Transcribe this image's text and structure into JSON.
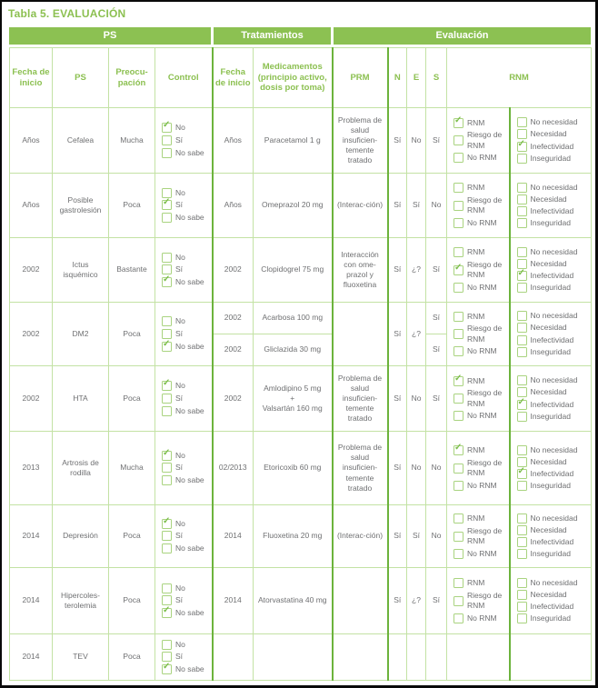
{
  "title": "Tabla 5. EVALUACIÓN",
  "colors": {
    "green_band": "#8cc152",
    "green_dark": "#6cb33c",
    "green_text": "#8cc051",
    "border_light": "#c3e2a4",
    "cb_border": "#a9d37f",
    "check_green": "#7bbd4a",
    "text_gray": "#6f7072",
    "frame_black": "#0a0a0a"
  },
  "icons": {
    "check": "✓"
  },
  "table": {
    "groups": [
      "PS",
      "Tratamientos",
      "Evaluación"
    ],
    "columns": [
      "Fecha de inicio",
      "PS",
      "Preocu-pación",
      "Control",
      "Fecha de inicio",
      "Medicamentos (principio activo, dosis por toma)",
      "PRM",
      "N",
      "E",
      "S",
      "RNM"
    ],
    "control_options": [
      "No",
      "Sí",
      "No sabe"
    ],
    "rnm_left_options": [
      "RNM",
      "Riesgo de RNM",
      "No RNM"
    ],
    "rnm_right_options": [
      "No necesidad",
      "Necesidad",
      "Inefectividad",
      "Inseguridad"
    ],
    "rows": [
      {
        "fecha_inicio_ps": "Años",
        "ps": "Cefalea",
        "preocupacion": "Mucha",
        "control_checked": 0,
        "tratamientos": [
          {
            "fecha_inicio": "Años",
            "medicamento": "Paracetamol 1 g"
          }
        ],
        "prm": "Problema de salud insuficien-temente tratado",
        "n": "Sí",
        "e": "No",
        "s": [
          "Sí"
        ],
        "rnm_left_checked": 0,
        "rnm_right_checked": 2,
        "rnm_visible": true
      },
      {
        "fecha_inicio_ps": "Años",
        "ps": "Posible gastrolesión",
        "preocupacion": "Poca",
        "control_checked": 1,
        "tratamientos": [
          {
            "fecha_inicio": "Años",
            "medicamento": "Omeprazol 20 mg"
          }
        ],
        "prm": "(Interac-ción)",
        "n": "Sí",
        "e": "Sí",
        "s": [
          "No"
        ],
        "rnm_left_checked": null,
        "rnm_right_checked": null,
        "rnm_visible": true
      },
      {
        "fecha_inicio_ps": "2002",
        "ps": "Ictus isquémico",
        "preocupacion": "Bastante",
        "control_checked": 2,
        "tratamientos": [
          {
            "fecha_inicio": "2002",
            "medicamento": "Clopidogrel 75 mg"
          }
        ],
        "prm": "Interacción con ome-prazol y fluoxetina",
        "n": "Sí",
        "e": "¿?",
        "s": [
          "Sí"
        ],
        "rnm_left_checked": 1,
        "rnm_right_checked": 2,
        "rnm_visible": true
      },
      {
        "fecha_inicio_ps": "2002",
        "ps": "DM2",
        "preocupacion": "Poca",
        "control_checked": 2,
        "tratamientos": [
          {
            "fecha_inicio": "2002",
            "medicamento": "Acarbosa 100 mg"
          },
          {
            "fecha_inicio": "2002",
            "medicamento": "Gliclazida 30 mg"
          }
        ],
        "prm": "",
        "n": "Sí",
        "e": "¿?",
        "s": [
          "Sí",
          "Sí"
        ],
        "rnm_left_checked": null,
        "rnm_right_checked": null,
        "rnm_visible": true
      },
      {
        "fecha_inicio_ps": "2002",
        "ps": "HTA",
        "preocupacion": "Poca",
        "control_checked": 0,
        "tratamientos": [
          {
            "fecha_inicio": "2002",
            "medicamento": "Amlodipino 5 mg\n+\nValsartán 160 mg"
          }
        ],
        "prm": "Problema de salud insuficien-temente tratado",
        "n": "Sí",
        "e": "No",
        "s": [
          "Sí"
        ],
        "rnm_left_checked": 0,
        "rnm_right_checked": 2,
        "rnm_visible": true
      },
      {
        "fecha_inicio_ps": "2013",
        "ps": "Artrosis de rodilla",
        "preocupacion": "Mucha",
        "control_checked": 0,
        "tratamientos": [
          {
            "fecha_inicio": "02/2013",
            "medicamento": "Etoricoxib 60 mg"
          }
        ],
        "prm": "Problema de salud insuficien-temente tratado",
        "n": "Sí",
        "e": "No",
        "s": [
          "No"
        ],
        "rnm_left_checked": 0,
        "rnm_right_checked": 2,
        "rnm_visible": true
      },
      {
        "fecha_inicio_ps": "2014",
        "ps": "Depresión",
        "preocupacion": "Poca",
        "control_checked": 0,
        "tratamientos": [
          {
            "fecha_inicio": "2014",
            "medicamento": "Fluoxetina 20 mg"
          }
        ],
        "prm": "(Interac-ción)",
        "n": "Sí",
        "e": "Sí",
        "s": [
          "No"
        ],
        "rnm_left_checked": null,
        "rnm_right_checked": null,
        "rnm_visible": true
      },
      {
        "fecha_inicio_ps": "2014",
        "ps": "Hipercoles-terolemia",
        "preocupacion": "Poca",
        "control_checked": 2,
        "tratamientos": [
          {
            "fecha_inicio": "2014",
            "medicamento": "Atorvastatina 40 mg"
          }
        ],
        "prm": "",
        "n": "Sí",
        "e": "¿?",
        "s": [
          "Sí"
        ],
        "rnm_left_checked": null,
        "rnm_right_checked": null,
        "rnm_visible": true
      },
      {
        "fecha_inicio_ps": "2014",
        "ps": "TEV",
        "preocupacion": "Poca",
        "control_checked": 2,
        "tratamientos": [
          {
            "fecha_inicio": "",
            "medicamento": ""
          }
        ],
        "prm": "",
        "n": "",
        "e": "",
        "s": [
          ""
        ],
        "rnm_left_checked": null,
        "rnm_right_checked": null,
        "rnm_visible": false
      }
    ]
  }
}
